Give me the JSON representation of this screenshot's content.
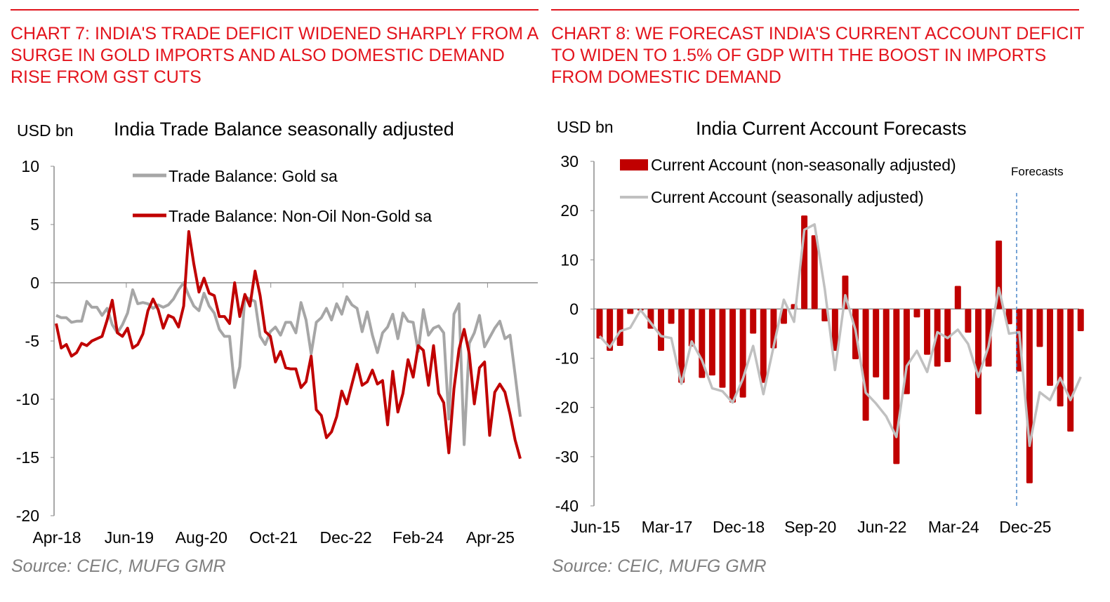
{
  "left": {
    "heading": "CHART 7: INDIA'S TRADE DEFICIT WIDENED SHARPLY FROM A SURGE IN GOLD IMPORTS AND ALSO DOMESTIC DEMAND RISE FROM GST CUTS",
    "source": "Source: CEIC, MUFG GMR"
  },
  "right": {
    "heading": "CHART 8: WE FORECAST INDIA'S CURRENT ACCOUNT DEFICIT TO WIDEN TO 1.5% OF GDP WITH THE BOOST IN IMPORTS FROM DOMESTIC DEMAND",
    "source": "Source: CEIC, MUFG GMR"
  },
  "colors": {
    "heading": "#e3141d",
    "red_series": "#c00000",
    "gold_series": "#a6a6a6",
    "sa_series": "#c0c0c0",
    "forecast_line": "#4a86c8"
  },
  "chart_data": [
    {
      "type": "line",
      "title": "India Trade Balance seasonally adjusted",
      "ylabel": "USD bn",
      "ylim": [
        -20,
        10
      ],
      "yticks": [
        "10",
        "5",
        "0",
        "-5",
        "-10",
        "-15",
        "-20"
      ],
      "x_start": "Apr-18",
      "x_frequency": "monthly",
      "xticks": [
        "Apr-18",
        "Jun-19",
        "Aug-20",
        "Oct-21",
        "Dec-22",
        "Feb-24",
        "Apr-25"
      ],
      "legend_position": "top",
      "series": [
        {
          "name": "Trade Balance: Gold sa",
          "color": "#a6a6a6",
          "values": [
            -2.8,
            -3.0,
            -3.0,
            -3.4,
            -3.3,
            -3.3,
            -1.6,
            -2.1,
            -2.1,
            -2.8,
            -2.2,
            -3.6,
            -4.3,
            -3.6,
            -2.6,
            -0.6,
            -1.8,
            -1.7,
            -1.8,
            -2.2,
            -1.9,
            -2.1,
            -1.9,
            -1.4,
            -0.6,
            0.0,
            -1.1,
            -2.0,
            -2.4,
            -0.9,
            -2.0,
            -2.6,
            -4.0,
            -4.6,
            -4.6,
            -9.0,
            -7.2,
            -1.2,
            -1.4,
            -1.6,
            -4.6,
            -5.3,
            -4.2,
            -3.8,
            -4.5,
            -3.4,
            -3.4,
            -4.3,
            -1.7,
            -3.2,
            -6.1,
            -3.4,
            -3.0,
            -2.2,
            -3.2,
            -1.8,
            -2.7,
            -1.2,
            -1.9,
            -2.2,
            -4.2,
            -2.5,
            -4.5,
            -6.0,
            -4.3,
            -3.8,
            -2.7,
            -4.8,
            -2.6,
            -3.3,
            -3.4,
            -5.9,
            -2.3,
            -4.5,
            -3.9,
            -3.7,
            -4.3,
            -11.7,
            -2.7,
            -1.8,
            -13.9,
            -5.2,
            -4.3,
            -2.8,
            -5.5,
            -4.7,
            -3.9,
            -3.3,
            -4.8,
            -4.5,
            -7.9,
            -11.5
          ]
        },
        {
          "name": "Trade Balance: Non-Oil Non-Gold sa",
          "color": "#c00000",
          "values": [
            -3.5,
            -5.6,
            -5.3,
            -6.3,
            -6.0,
            -5.2,
            -5.4,
            -5.0,
            -4.8,
            -4.6,
            -3.2,
            -1.5,
            -4.3,
            -4.6,
            -3.9,
            -5.6,
            -5.3,
            -4.4,
            -2.4,
            -1.4,
            -2.3,
            -3.9,
            -2.8,
            -3.0,
            -3.8,
            -2.0,
            4.4,
            1.6,
            -0.8,
            0.4,
            -0.9,
            -1.1,
            -2.9,
            -2.9,
            -3.5,
            0.0,
            -2.9,
            -1.0,
            -2.0,
            1.0,
            -1.1,
            -4.2,
            -4.6,
            -6.8,
            -5.9,
            -7.3,
            -7.4,
            -7.4,
            -9.0,
            -8.5,
            -6.3,
            -10.9,
            -11.4,
            -13.3,
            -12.8,
            -11.5,
            -9.3,
            -10.4,
            -8.7,
            -7.0,
            -8.8,
            -8.5,
            -7.5,
            -8.7,
            -8.4,
            -12.2,
            -7.6,
            -11.1,
            -9.5,
            -6.6,
            -8.1,
            -5.4,
            -5.8,
            -8.8,
            -5.4,
            -9.5,
            -10.3,
            -14.6,
            -9.1,
            -5.7,
            -4.0,
            -6.1,
            -10.4,
            -7.3,
            -6.8,
            -13.1,
            -9.4,
            -8.7,
            -9.4,
            -11.3,
            -13.5,
            -15.1
          ]
        }
      ]
    },
    {
      "type": "bar+line",
      "title": "India Current Account Forecasts",
      "ylabel": "USD bn",
      "ylim": [
        -40,
        30
      ],
      "yticks": [
        "30",
        "20",
        "10",
        "0",
        "-10",
        "-20",
        "-30",
        "-40"
      ],
      "x_start": "Jun-15",
      "x_frequency": "quarterly",
      "xticks": [
        "Jun-15",
        "Mar-17",
        "Dec-18",
        "Sep-20",
        "Jun-22",
        "Mar-24",
        "Dec-25"
      ],
      "forecast_label": "Forecasts",
      "forecast_start": "Dec-25",
      "legend_position": "top",
      "series": [
        {
          "name": "Current Account (non-seasonally adjusted)",
          "kind": "bar",
          "color": "#c00000",
          "values": [
            -6,
            -8.5,
            -7.5,
            -1,
            -0.3,
            -4,
            -8.5,
            -3,
            -15,
            -7.6,
            -14,
            -13.5,
            -16,
            -19,
            -18,
            -5,
            -15,
            -8,
            -3,
            1,
            19,
            15,
            -2.5,
            -8.5,
            6.8,
            -10.2,
            -22.7,
            -13.9,
            -18.4,
            -31.5,
            -17.3,
            -1.7,
            -9.3,
            -11.7,
            -10.8,
            4.7,
            -4.8,
            -21.4,
            -11.7,
            13.9,
            -3.1,
            -12.7,
            -35.4,
            -7.7,
            -15.6,
            -19.8,
            -24.9,
            -4.5
          ]
        },
        {
          "name": "Current Account (seasonally adjusted)",
          "kind": "line",
          "color": "#c0c0c0",
          "values": [
            -5.5,
            -7.8,
            -4.5,
            -3.8,
            -0.2,
            -2.8,
            -5.5,
            -5.9,
            -15.2,
            -6.6,
            -10.4,
            -16.1,
            -16.7,
            -19,
            -14.2,
            -7.5,
            -17.3,
            -7.6,
            1.9,
            -2.6,
            16.1,
            17.2,
            4,
            -12.4,
            2.8,
            -4.3,
            -17,
            -19.2,
            -21.8,
            -26,
            -11.6,
            -8.5,
            -12.8,
            -4.7,
            -5.9,
            -4.2,
            -7.1,
            -13.8,
            -7.6,
            4.3,
            -5,
            -4.7,
            -27.8,
            -16.9,
            -18.5,
            -14,
            -18.5,
            -13.8
          ]
        }
      ]
    }
  ]
}
